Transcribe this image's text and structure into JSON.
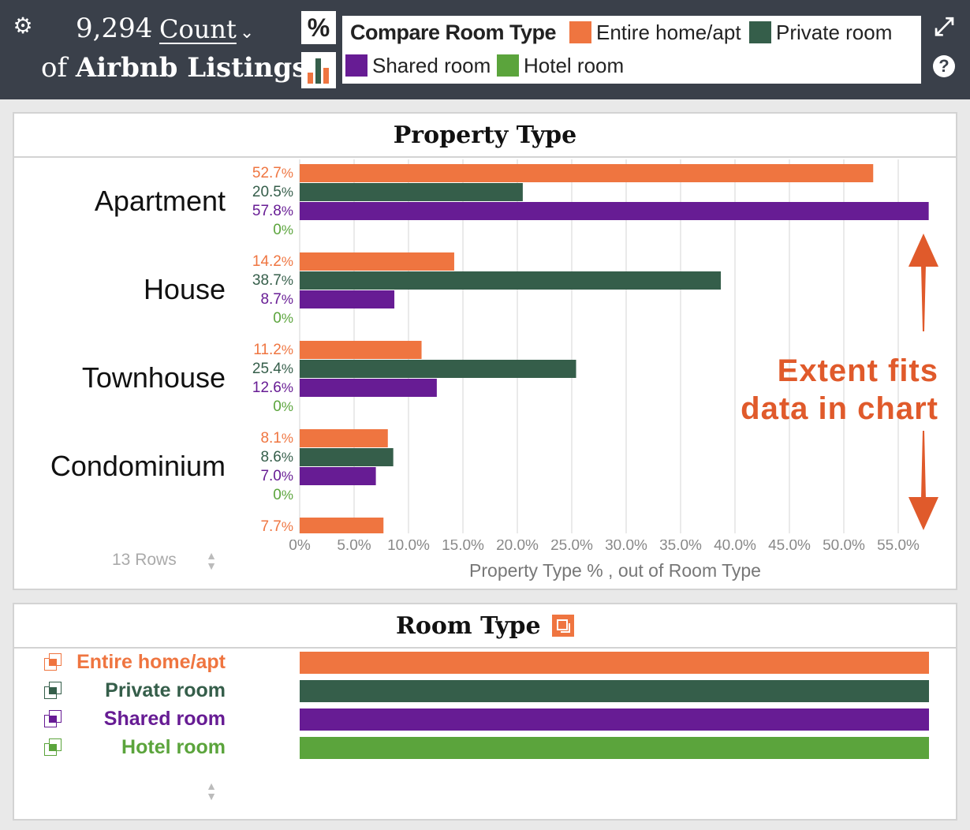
{
  "header": {
    "count_value": "9,294",
    "count_measure": "Count",
    "of_word": "of",
    "dataset_name": "Airbnb Listings",
    "percent_toggle": "%",
    "settings_icon": "gear-icon",
    "expand_icon": "expand-icon",
    "help_icon": "help-icon",
    "help_glyph": "?"
  },
  "compare_legend": {
    "title": "Compare Room Type",
    "items": [
      {
        "label": "Entire home/apt",
        "color": "#ef7540"
      },
      {
        "label": "Private room",
        "color": "#355e4a"
      },
      {
        "label": "Shared room",
        "color": "#671c94"
      },
      {
        "label": "Hotel room",
        "color": "#5ba43c"
      }
    ]
  },
  "property_panel": {
    "title": "Property Type",
    "rows_label": "13 Rows",
    "annotation_line1": "Extent fits",
    "annotation_line2": "data in chart",
    "xaxis_title": "Property Type % , out of Room Type",
    "xticks": [
      "0%",
      "5.0%",
      "10.0%",
      "15.0%",
      "20.0%",
      "25.0%",
      "30.0%",
      "35.0%",
      "40.0%",
      "45.0%",
      "50.0%",
      "55.0%"
    ]
  },
  "chart_data": {
    "type": "bar",
    "orientation": "horizontal",
    "categories": [
      "Apartment",
      "House",
      "Townhouse",
      "Condominium",
      ""
    ],
    "series": [
      {
        "name": "Entire home/apt",
        "color": "#ef7540",
        "values": [
          52.7,
          14.2,
          11.2,
          8.1,
          7.7
        ],
        "labels": [
          "52.7",
          "14.2",
          "11.2",
          "8.1",
          "7.7"
        ]
      },
      {
        "name": "Private room",
        "color": "#355e4a",
        "values": [
          20.5,
          38.7,
          25.4,
          8.6,
          null
        ],
        "labels": [
          "20.5",
          "38.7",
          "25.4",
          "8.6",
          ""
        ]
      },
      {
        "name": "Shared room",
        "color": "#671c94",
        "values": [
          57.8,
          8.7,
          12.6,
          7.0,
          null
        ],
        "labels": [
          "57.8",
          "8.7",
          "12.6",
          "7.0",
          ""
        ]
      },
      {
        "name": "Hotel room",
        "color": "#5ba43c",
        "values": [
          0,
          0,
          0,
          0,
          null
        ],
        "labels": [
          "0",
          "0",
          "0",
          "0",
          ""
        ]
      }
    ],
    "xlim": [
      0,
      57.8
    ],
    "xlabel": "Property Type % , out of Room Type",
    "grid": true
  },
  "room_panel": {
    "title": "Room Type",
    "items": [
      {
        "label": "Entire home/apt",
        "color": "#ef7540",
        "share": 1
      },
      {
        "label": "Private room",
        "color": "#355e4a",
        "share": 1
      },
      {
        "label": "Shared room",
        "color": "#671c94",
        "share": 1
      },
      {
        "label": "Hotel room",
        "color": "#5ba43c",
        "share": 1
      }
    ]
  }
}
